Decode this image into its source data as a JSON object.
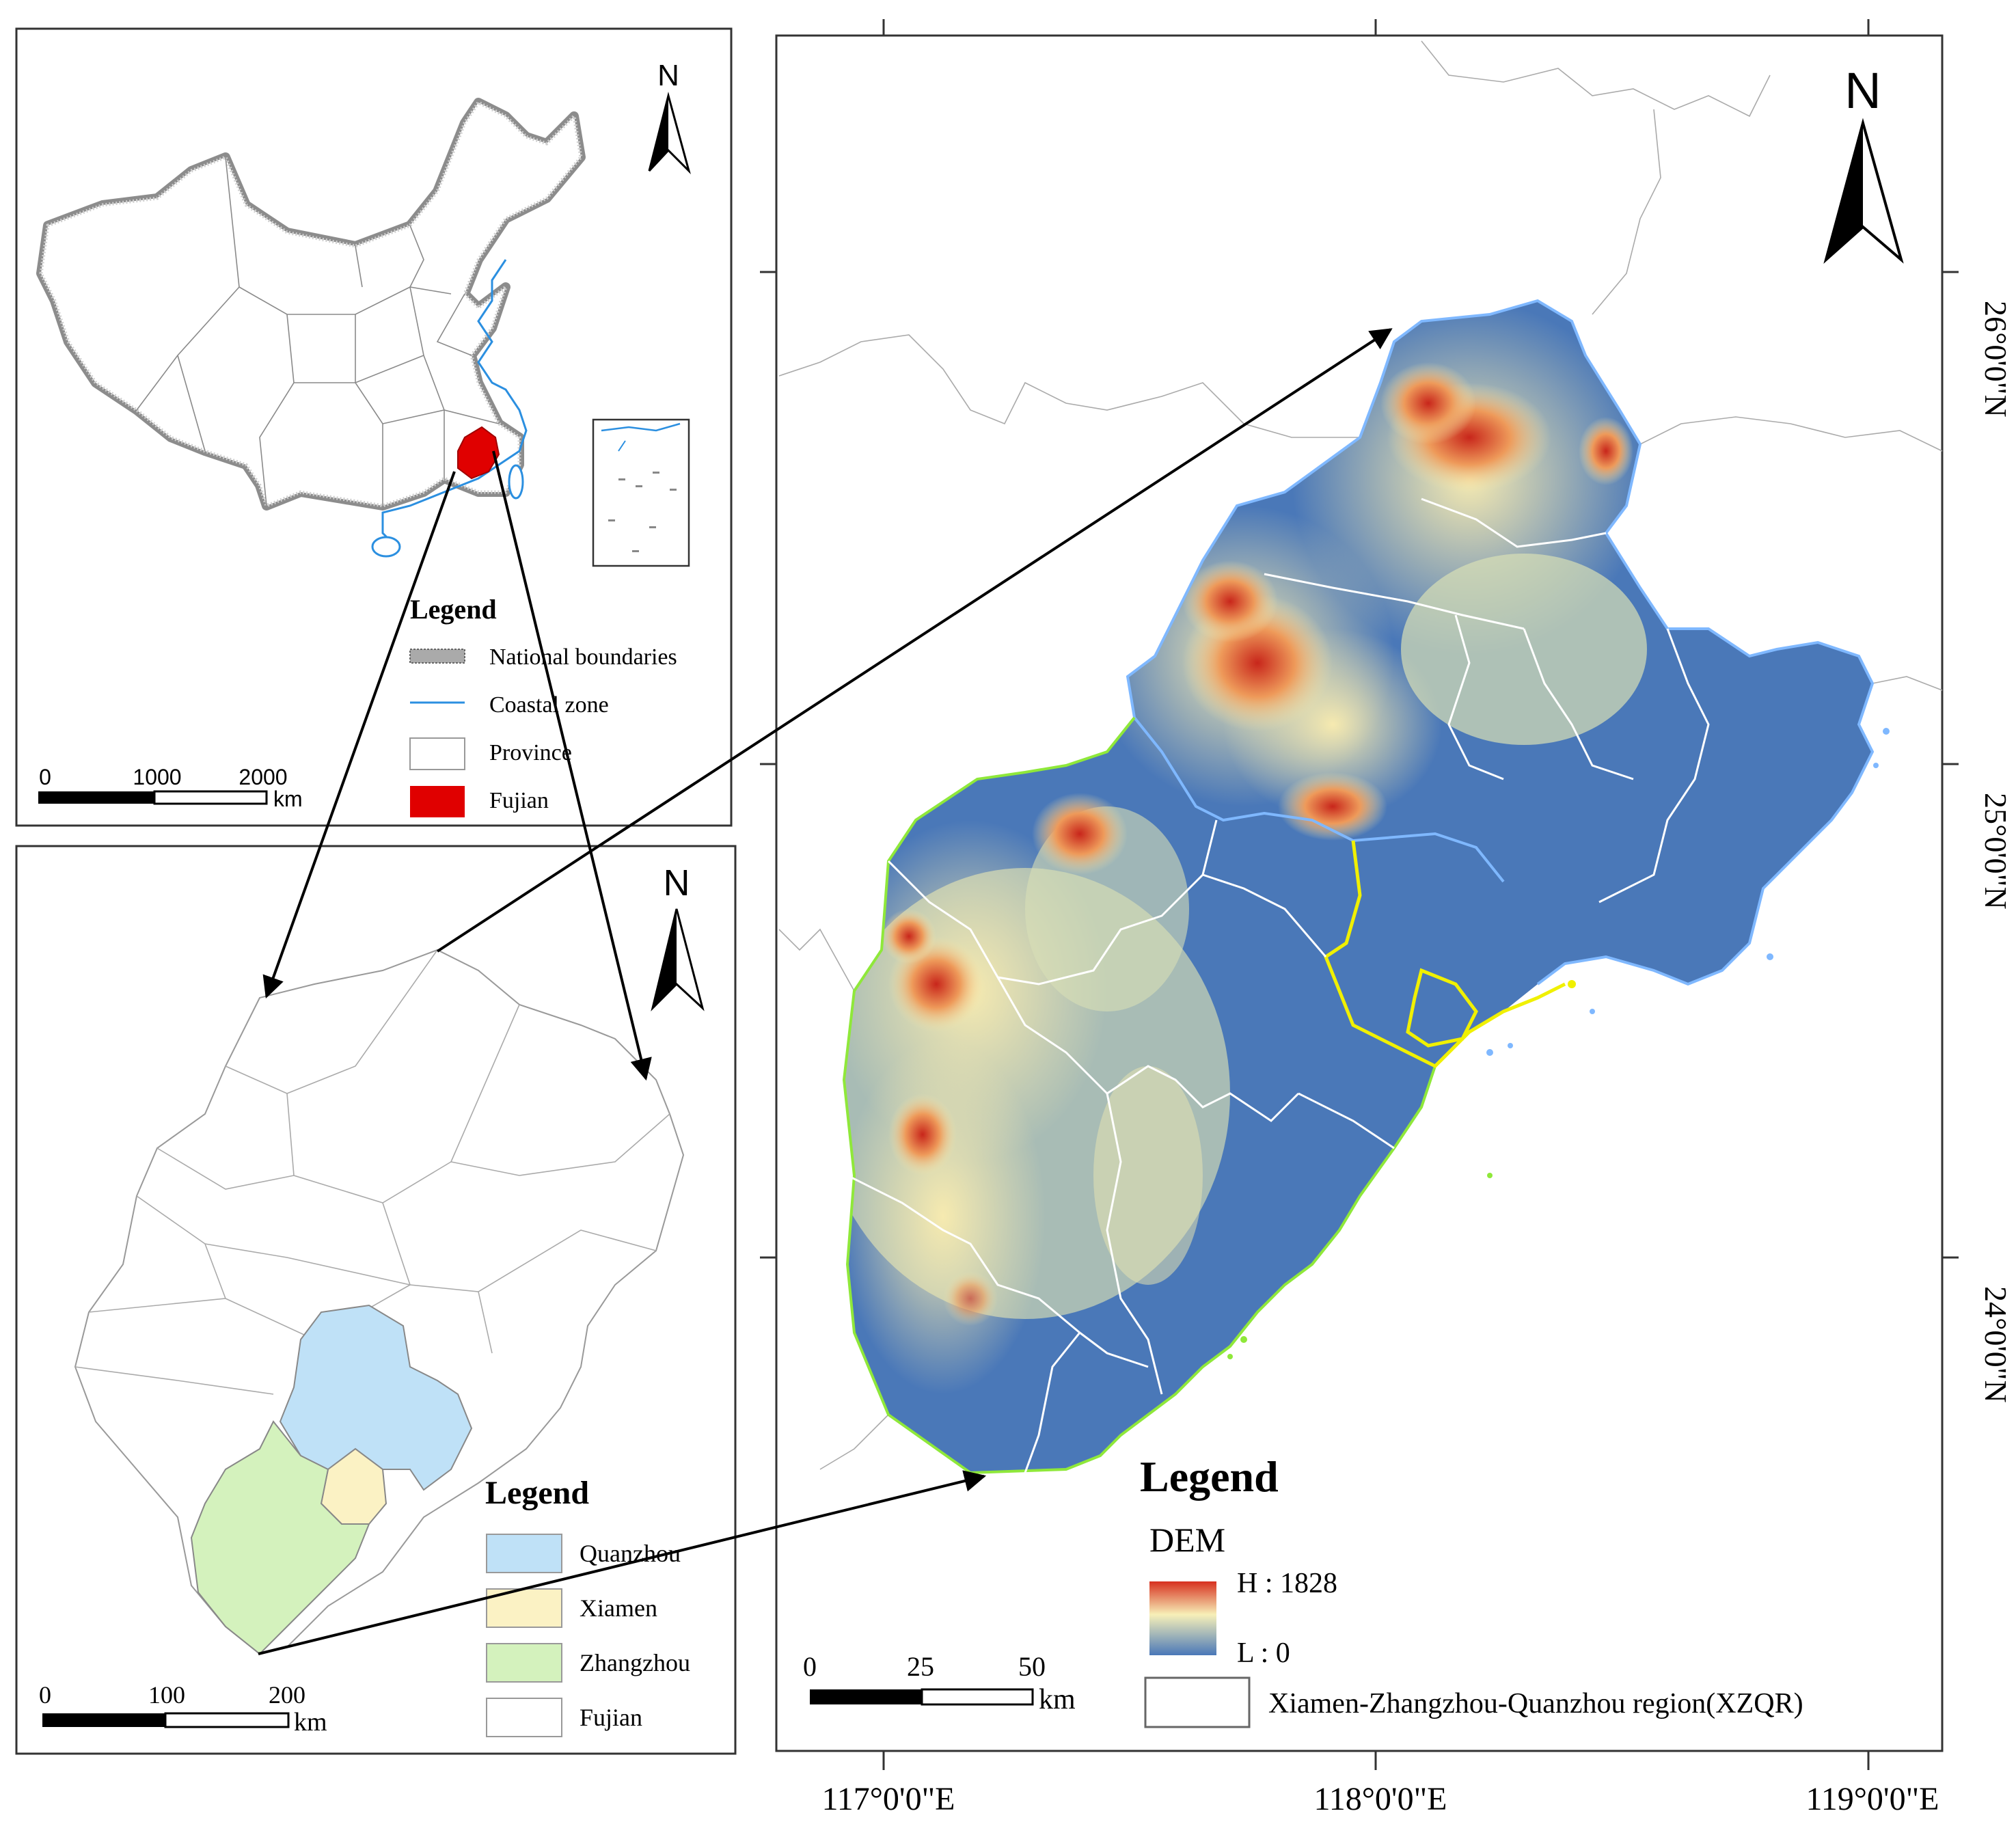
{
  "china_panel": {
    "north": "N",
    "legend_title": "Legend",
    "legend_items": [
      {
        "label": "National boundaries",
        "color": "#8c8c8c"
      },
      {
        "label": "Coastal zone",
        "color": "#2b8fe0"
      },
      {
        "label": "Province",
        "color": "#ffffff"
      },
      {
        "label": "Fujian",
        "color": "#e00000"
      }
    ],
    "scale": {
      "ticks": [
        "0",
        "1000",
        "2000"
      ],
      "unit": "km"
    }
  },
  "fujian_panel": {
    "north": "N",
    "legend_title": "Legend",
    "legend_items": [
      {
        "label": "Quanzhou",
        "color": "#bfe1f7"
      },
      {
        "label": "Xiamen",
        "color": "#fbf2c4"
      },
      {
        "label": "Zhangzhou",
        "color": "#d4f2bd"
      },
      {
        "label": "Fujian",
        "color": "#ffffff"
      }
    ],
    "scale": {
      "ticks": [
        "0",
        "100",
        "200"
      ],
      "unit": "km"
    }
  },
  "xzqr_panel": {
    "north": "N",
    "legend_title": "Legend",
    "dem_title": "DEM",
    "dem_high": "H : 1828",
    "dem_low": "L : 0",
    "region_label": "Xiamen-Zhangzhou-Quanzhou region(XZQR)",
    "scale": {
      "ticks": [
        "0",
        "25",
        "50"
      ],
      "unit": "km"
    },
    "lat_labels": [
      "26°0'0\"N",
      "25°0'0\"N",
      "24°0'0\"N"
    ],
    "lon_labels": [
      "117°0'0\"E",
      "118°0'0\"E",
      "119°0'0\"E"
    ],
    "colors": {
      "low": "#4a78b8",
      "mid": "#f7f0b8",
      "high": "#d7301f",
      "quanzhou_border": "#7fb8ff",
      "zhangzhou_border": "#8fe83a",
      "xiamen_border": "#f0f000"
    }
  }
}
